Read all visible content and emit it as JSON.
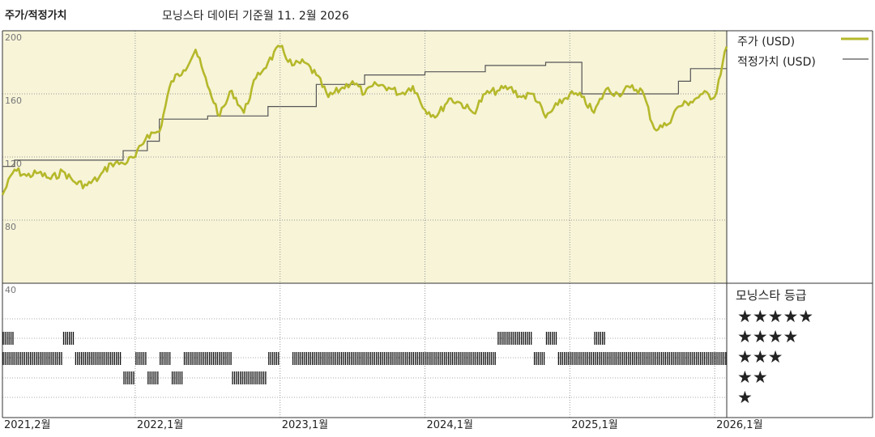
{
  "header": {
    "title": "주가/적정가치",
    "subtitle": "모닝스타 데이터 기준월 11. 2월 2026"
  },
  "legend": {
    "price_label": "주가 (USD)",
    "fair_label": "적정가치 (USD)",
    "price_color": "#b5b82a",
    "fair_color": "#555555"
  },
  "rating_panel": {
    "title": "모닝스타 등급",
    "rows": [
      "★★★★★",
      "★★★★",
      "★★★",
      "★★",
      "★"
    ]
  },
  "chart_data": {
    "type": "line",
    "title": "주가/적정가치",
    "ylabel": "",
    "ylim": [
      40,
      200
    ],
    "y_ticks": [
      "200",
      "160",
      "120",
      "80",
      "40"
    ],
    "x_range": [
      "2021-02",
      "2026-02"
    ],
    "x_ticks": [
      "2021,2월",
      "2022,1월",
      "2023,1월",
      "2024,1월",
      "2025,1월",
      "2026,1월"
    ],
    "background_color": "#f7f4d8",
    "series": [
      {
        "name": "주가 (USD)",
        "color": "#b5b82a",
        "x": [
          "2021-02",
          "2021-03",
          "2021-04",
          "2021-05",
          "2021-06",
          "2021-07",
          "2021-08",
          "2021-09",
          "2021-10",
          "2021-11",
          "2021-12",
          "2022-01",
          "2022-02",
          "2022-03",
          "2022-04",
          "2022-05",
          "2022-06",
          "2022-07",
          "2022-08",
          "2022-09",
          "2022-10",
          "2022-11",
          "2022-12",
          "2023-01",
          "2023-02",
          "2023-03",
          "2023-04",
          "2023-05",
          "2023-06",
          "2023-07",
          "2023-08",
          "2023-09",
          "2023-10",
          "2023-11",
          "2023-12",
          "2024-01",
          "2024-02",
          "2024-03",
          "2024-04",
          "2024-05",
          "2024-06",
          "2024-07",
          "2024-08",
          "2024-09",
          "2024-10",
          "2024-11",
          "2024-12",
          "2025-01",
          "2025-02",
          "2025-03",
          "2025-04",
          "2025-05",
          "2025-06",
          "2025-07",
          "2025-08",
          "2025-09",
          "2025-10",
          "2025-11",
          "2025-12",
          "2026-01",
          "2026-02"
        ],
        "values": [
          96,
          112,
          108,
          110,
          106,
          111,
          104,
          102,
          107,
          116,
          116,
          120,
          134,
          136,
          168,
          175,
          188,
          165,
          146,
          162,
          148,
          170,
          180,
          190,
          178,
          180,
          172,
          158,
          163,
          168,
          160,
          166,
          164,
          160,
          165,
          150,
          146,
          157,
          154,
          148,
          160,
          162,
          164,
          158,
          160,
          145,
          153,
          160,
          158,
          148,
          163,
          160,
          164,
          162,
          138,
          140,
          152,
          155,
          160,
          158,
          190
        ]
      },
      {
        "name": "적정가치 (USD)",
        "color": "#555555",
        "x": [
          "2021-02",
          "2021-03",
          "2021-04",
          "2021-05",
          "2021-06",
          "2021-07",
          "2021-08",
          "2021-09",
          "2021-10",
          "2021-11",
          "2021-12",
          "2022-01",
          "2022-02",
          "2022-03",
          "2022-04",
          "2022-05",
          "2022-06",
          "2022-07",
          "2022-08",
          "2022-09",
          "2022-10",
          "2022-11",
          "2022-12",
          "2023-01",
          "2023-02",
          "2023-03",
          "2023-04",
          "2023-05",
          "2023-06",
          "2023-07",
          "2023-08",
          "2023-09",
          "2023-10",
          "2023-11",
          "2023-12",
          "2024-01",
          "2024-02",
          "2024-03",
          "2024-04",
          "2024-05",
          "2024-06",
          "2024-07",
          "2024-08",
          "2024-09",
          "2024-10",
          "2024-11",
          "2024-12",
          "2025-01",
          "2025-02",
          "2025-03",
          "2025-04",
          "2025-05",
          "2025-06",
          "2025-07",
          "2025-08",
          "2025-09",
          "2025-10",
          "2025-11",
          "2025-12",
          "2026-01",
          "2026-02"
        ],
        "values": [
          114,
          118,
          118,
          118,
          118,
          118,
          118,
          118,
          118,
          118,
          124,
          124,
          130,
          144,
          144,
          144,
          144,
          146,
          146,
          146,
          146,
          146,
          152,
          152,
          152,
          152,
          166,
          166,
          166,
          166,
          172,
          172,
          172,
          172,
          172,
          174,
          174,
          174,
          174,
          174,
          178,
          178,
          178,
          178,
          178,
          180,
          180,
          180,
          160,
          160,
          160,
          160,
          160,
          160,
          160,
          160,
          168,
          176,
          176,
          176,
          176
        ]
      }
    ],
    "rating_bands": [
      {
        "label": "★★★★★",
        "spans": []
      },
      {
        "label": "★★★★",
        "spans": [
          [
            "2021-02",
            "2021-03"
          ],
          [
            "2021-07",
            "2021-08"
          ],
          [
            "2024-07",
            "2024-10"
          ],
          [
            "2024-11",
            "2024-12"
          ],
          [
            "2025-03",
            "2025-04"
          ]
        ]
      },
      {
        "label": "★★★",
        "spans": [
          [
            "2021-02",
            "2021-07"
          ],
          [
            "2021-08",
            "2021-12"
          ],
          [
            "2022-01",
            "2022-02"
          ],
          [
            "2022-03",
            "2022-04"
          ],
          [
            "2022-05",
            "2022-09"
          ],
          [
            "2022-12",
            "2023-01"
          ],
          [
            "2023-02",
            "2024-07"
          ],
          [
            "2024-10",
            "2024-11"
          ],
          [
            "2024-12",
            "2026-02"
          ]
        ]
      },
      {
        "label": "★★",
        "spans": [
          [
            "2021-12",
            "2022-01"
          ],
          [
            "2022-02",
            "2022-03"
          ],
          [
            "2022-04",
            "2022-05"
          ],
          [
            "2022-09",
            "2022-12"
          ]
        ]
      },
      {
        "label": "★",
        "spans": []
      }
    ]
  }
}
